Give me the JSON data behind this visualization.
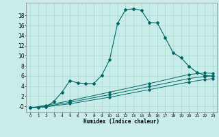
{
  "title": "",
  "xlabel": "Humidex (Indice chaleur)",
  "bg_color": "#c8ece8",
  "line_color": "#006666",
  "xlim": [
    -0.5,
    23.5
  ],
  "ylim": [
    -1.2,
    20.5
  ],
  "xticks": [
    0,
    1,
    2,
    3,
    4,
    5,
    6,
    7,
    8,
    9,
    10,
    11,
    12,
    13,
    14,
    15,
    16,
    17,
    18,
    19,
    20,
    21,
    22,
    23
  ],
  "yticks": [
    0,
    2,
    4,
    6,
    8,
    10,
    12,
    14,
    16,
    18
  ],
  "ytick_labels": [
    "-0",
    "2",
    "4",
    "6",
    "8",
    "10",
    "12",
    "14",
    "16",
    "18"
  ],
  "curve1_x": [
    0,
    1,
    2,
    3,
    4,
    5,
    6,
    7,
    8,
    9,
    10,
    11,
    12,
    13,
    14,
    15,
    16,
    17,
    18,
    19,
    20,
    21,
    22,
    23
  ],
  "curve1_y": [
    -0.3,
    -0.2,
    -0.1,
    1.0,
    2.8,
    5.1,
    4.6,
    4.5,
    4.5,
    6.1,
    9.2,
    16.4,
    19.1,
    19.3,
    19.0,
    16.6,
    16.5,
    13.6,
    10.6,
    9.6,
    7.9,
    6.7,
    6.1,
    6.0
  ],
  "curve2_x": [
    0,
    2,
    5,
    10,
    15,
    20,
    22,
    23
  ],
  "curve2_y": [
    -0.3,
    -0.1,
    0.5,
    1.8,
    3.3,
    4.8,
    5.3,
    5.5
  ],
  "curve3_x": [
    0,
    2,
    5,
    10,
    15,
    20,
    22,
    23
  ],
  "curve3_y": [
    -0.3,
    0.0,
    0.8,
    2.3,
    3.9,
    5.5,
    5.9,
    6.0
  ],
  "curve4_x": [
    0,
    2,
    5,
    10,
    15,
    20,
    22,
    23
  ],
  "curve4_y": [
    -0.3,
    0.2,
    1.1,
    2.8,
    4.5,
    6.3,
    6.6,
    6.5
  ]
}
